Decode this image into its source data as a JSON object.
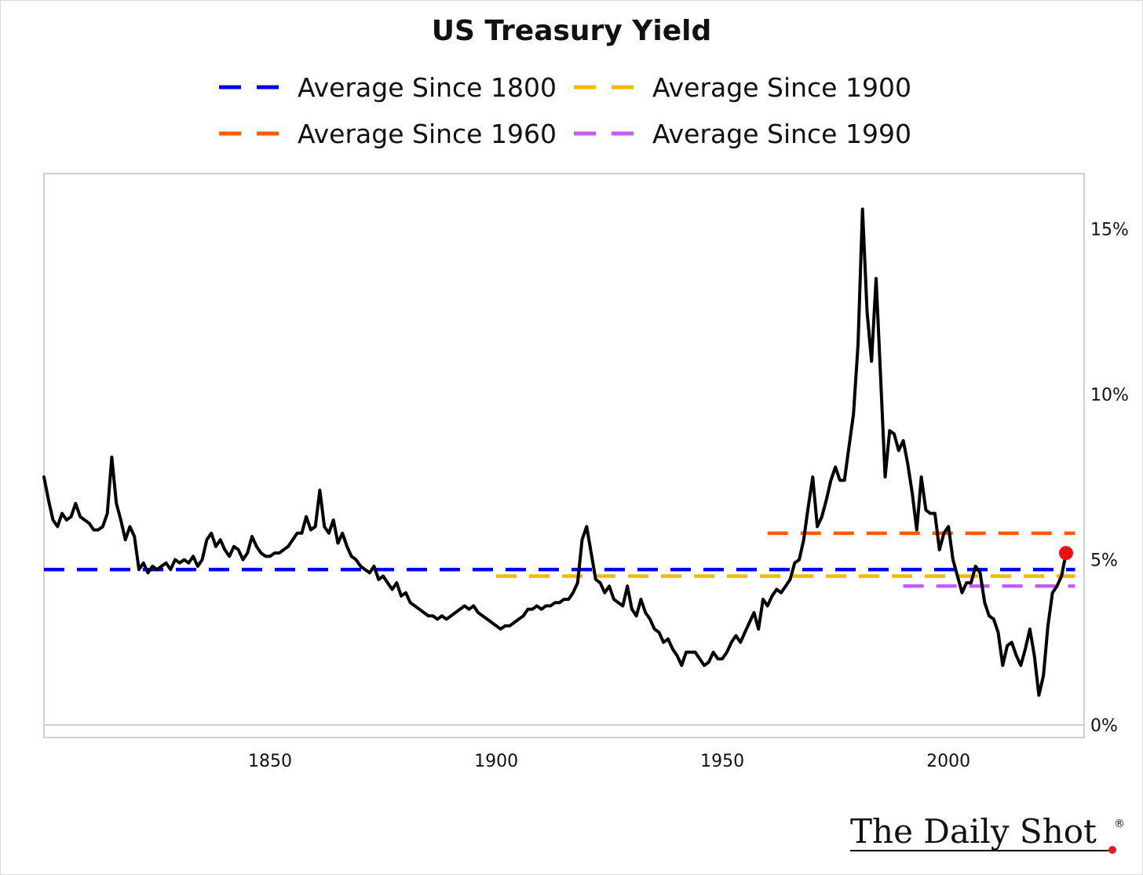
{
  "chart_data": {
    "type": "line",
    "title": "US Treasury Yield",
    "xlabel": "",
    "ylabel": "",
    "xlim": [
      1800,
      2030
    ],
    "ylim": [
      -0.2,
      16.6
    ],
    "x_ticks": [
      1850,
      1900,
      1950,
      2000
    ],
    "x_tick_labels": [
      "1850",
      "1900",
      "1950",
      "2000"
    ],
    "y_ticks": [
      0,
      5,
      10,
      15
    ],
    "y_tick_labels": [
      "0%",
      "5%",
      "10%",
      "15%"
    ],
    "y_axis_position": "right",
    "grid": false,
    "legend_position": "top",
    "series": [
      {
        "color": "#000000",
        "points": [
          [
            1800,
            7.5
          ],
          [
            1801,
            6.8
          ],
          [
            1802,
            6.2
          ],
          [
            1803,
            6.0
          ],
          [
            1804,
            6.4
          ],
          [
            1805,
            6.2
          ],
          [
            1806,
            6.3
          ],
          [
            1807,
            6.7
          ],
          [
            1808,
            6.3
          ],
          [
            1809,
            6.2
          ],
          [
            1810,
            6.1
          ],
          [
            1811,
            5.9
          ],
          [
            1812,
            5.9
          ],
          [
            1813,
            6.0
          ],
          [
            1814,
            6.4
          ],
          [
            1815,
            8.1
          ],
          [
            1816,
            6.7
          ],
          [
            1817,
            6.2
          ],
          [
            1818,
            5.6
          ],
          [
            1819,
            6.0
          ],
          [
            1820,
            5.7
          ],
          [
            1821,
            4.7
          ],
          [
            1822,
            4.9
          ],
          [
            1823,
            4.6
          ],
          [
            1824,
            4.8
          ],
          [
            1825,
            4.7
          ],
          [
            1826,
            4.8
          ],
          [
            1827,
            4.9
          ],
          [
            1828,
            4.7
          ],
          [
            1829,
            5.0
          ],
          [
            1830,
            4.9
          ],
          [
            1831,
            5.0
          ],
          [
            1832,
            4.9
          ],
          [
            1833,
            5.1
          ],
          [
            1834,
            4.8
          ],
          [
            1835,
            5.0
          ],
          [
            1836,
            5.6
          ],
          [
            1837,
            5.8
          ],
          [
            1838,
            5.4
          ],
          [
            1839,
            5.6
          ],
          [
            1840,
            5.3
          ],
          [
            1841,
            5.1
          ],
          [
            1842,
            5.4
          ],
          [
            1843,
            5.3
          ],
          [
            1844,
            5.0
          ],
          [
            1845,
            5.2
          ],
          [
            1846,
            5.7
          ],
          [
            1847,
            5.4
          ],
          [
            1848,
            5.2
          ],
          [
            1849,
            5.1
          ],
          [
            1850,
            5.1
          ],
          [
            1851,
            5.2
          ],
          [
            1852,
            5.2
          ],
          [
            1853,
            5.3
          ],
          [
            1854,
            5.4
          ],
          [
            1855,
            5.6
          ],
          [
            1856,
            5.8
          ],
          [
            1857,
            5.8
          ],
          [
            1858,
            6.3
          ],
          [
            1859,
            5.9
          ],
          [
            1860,
            6.0
          ],
          [
            1861,
            7.1
          ],
          [
            1862,
            6.0
          ],
          [
            1863,
            5.8
          ],
          [
            1864,
            6.2
          ],
          [
            1865,
            5.5
          ],
          [
            1866,
            5.8
          ],
          [
            1867,
            5.4
          ],
          [
            1868,
            5.1
          ],
          [
            1869,
            5.0
          ],
          [
            1870,
            4.8
          ],
          [
            1871,
            4.7
          ],
          [
            1872,
            4.6
          ],
          [
            1873,
            4.8
          ],
          [
            1874,
            4.4
          ],
          [
            1875,
            4.5
          ],
          [
            1876,
            4.3
          ],
          [
            1877,
            4.1
          ],
          [
            1878,
            4.3
          ],
          [
            1879,
            3.9
          ],
          [
            1880,
            4.0
          ],
          [
            1881,
            3.7
          ],
          [
            1882,
            3.6
          ],
          [
            1883,
            3.5
          ],
          [
            1884,
            3.4
          ],
          [
            1885,
            3.3
          ],
          [
            1886,
            3.3
          ],
          [
            1887,
            3.2
          ],
          [
            1888,
            3.3
          ],
          [
            1889,
            3.2
          ],
          [
            1890,
            3.3
          ],
          [
            1891,
            3.4
          ],
          [
            1892,
            3.5
          ],
          [
            1893,
            3.6
          ],
          [
            1894,
            3.5
          ],
          [
            1895,
            3.6
          ],
          [
            1896,
            3.4
          ],
          [
            1897,
            3.3
          ],
          [
            1898,
            3.2
          ],
          [
            1899,
            3.1
          ],
          [
            1900,
            3.0
          ],
          [
            1901,
            2.9
          ],
          [
            1902,
            3.0
          ],
          [
            1903,
            3.0
          ],
          [
            1904,
            3.1
          ],
          [
            1905,
            3.2
          ],
          [
            1906,
            3.3
          ],
          [
            1907,
            3.5
          ],
          [
            1908,
            3.5
          ],
          [
            1909,
            3.6
          ],
          [
            1910,
            3.5
          ],
          [
            1911,
            3.6
          ],
          [
            1912,
            3.6
          ],
          [
            1913,
            3.7
          ],
          [
            1914,
            3.7
          ],
          [
            1915,
            3.8
          ],
          [
            1916,
            3.8
          ],
          [
            1917,
            4.0
          ],
          [
            1918,
            4.3
          ],
          [
            1919,
            5.6
          ],
          [
            1920,
            6.0
          ],
          [
            1921,
            5.2
          ],
          [
            1922,
            4.4
          ],
          [
            1923,
            4.3
          ],
          [
            1924,
            4.0
          ],
          [
            1925,
            4.2
          ],
          [
            1926,
            3.8
          ],
          [
            1927,
            3.7
          ],
          [
            1928,
            3.6
          ],
          [
            1929,
            4.2
          ],
          [
            1930,
            3.5
          ],
          [
            1931,
            3.3
          ],
          [
            1932,
            3.8
          ],
          [
            1933,
            3.4
          ],
          [
            1934,
            3.2
          ],
          [
            1935,
            2.9
          ],
          [
            1936,
            2.8
          ],
          [
            1937,
            2.5
          ],
          [
            1938,
            2.6
          ],
          [
            1939,
            2.3
          ],
          [
            1940,
            2.1
          ],
          [
            1941,
            1.8
          ],
          [
            1942,
            2.2
          ],
          [
            1943,
            2.2
          ],
          [
            1944,
            2.2
          ],
          [
            1945,
            2.0
          ],
          [
            1946,
            1.8
          ],
          [
            1947,
            1.9
          ],
          [
            1948,
            2.2
          ],
          [
            1949,
            2.0
          ],
          [
            1950,
            2.0
          ],
          [
            1951,
            2.2
          ],
          [
            1952,
            2.5
          ],
          [
            1953,
            2.7
          ],
          [
            1954,
            2.5
          ],
          [
            1955,
            2.8
          ],
          [
            1956,
            3.1
          ],
          [
            1957,
            3.4
          ],
          [
            1958,
            2.9
          ],
          [
            1959,
            3.8
          ],
          [
            1960,
            3.6
          ],
          [
            1961,
            3.9
          ],
          [
            1962,
            4.1
          ],
          [
            1963,
            4.0
          ],
          [
            1964,
            4.2
          ],
          [
            1965,
            4.4
          ],
          [
            1966,
            4.9
          ],
          [
            1967,
            5.0
          ],
          [
            1968,
            5.6
          ],
          [
            1969,
            6.6
          ],
          [
            1970,
            7.5
          ],
          [
            1971,
            6.0
          ],
          [
            1972,
            6.3
          ],
          [
            1973,
            6.8
          ],
          [
            1974,
            7.4
          ],
          [
            1975,
            7.8
          ],
          [
            1976,
            7.4
          ],
          [
            1977,
            7.4
          ],
          [
            1978,
            8.4
          ],
          [
            1979,
            9.4
          ],
          [
            1980,
            11.5
          ],
          [
            1981,
            15.6
          ],
          [
            1982,
            12.5
          ],
          [
            1983,
            11.0
          ],
          [
            1984,
            13.5
          ],
          [
            1985,
            10.5
          ],
          [
            1986,
            7.5
          ],
          [
            1987,
            8.9
          ],
          [
            1988,
            8.8
          ],
          [
            1989,
            8.3
          ],
          [
            1990,
            8.6
          ],
          [
            1991,
            7.9
          ],
          [
            1992,
            7.0
          ],
          [
            1993,
            5.9
          ],
          [
            1994,
            7.5
          ],
          [
            1995,
            6.5
          ],
          [
            1996,
            6.4
          ],
          [
            1997,
            6.4
          ],
          [
            1998,
            5.3
          ],
          [
            1999,
            5.8
          ],
          [
            2000,
            6.0
          ],
          [
            2001,
            5.0
          ],
          [
            2002,
            4.5
          ],
          [
            2003,
            4.0
          ],
          [
            2004,
            4.3
          ],
          [
            2005,
            4.3
          ],
          [
            2006,
            4.8
          ],
          [
            2007,
            4.6
          ],
          [
            2008,
            3.7
          ],
          [
            2009,
            3.3
          ],
          [
            2010,
            3.2
          ],
          [
            2011,
            2.8
          ],
          [
            2012,
            1.8
          ],
          [
            2013,
            2.4
          ],
          [
            2014,
            2.5
          ],
          [
            2015,
            2.1
          ],
          [
            2016,
            1.8
          ],
          [
            2017,
            2.3
          ],
          [
            2018,
            2.9
          ],
          [
            2019,
            2.1
          ],
          [
            2020,
            0.9
          ],
          [
            2021,
            1.5
          ],
          [
            2022,
            3.0
          ],
          [
            2023,
            4.0
          ],
          [
            2024,
            4.2
          ],
          [
            2025,
            4.5
          ],
          [
            2026,
            5.2
          ]
        ]
      }
    ],
    "reference_lines": [
      {
        "name": "Average Since 1800",
        "color": "#0000ee",
        "value": 4.7,
        "x_start": 1800,
        "x_end": 2028
      },
      {
        "name": "Average Since 1900",
        "color": "#f5b800",
        "value": 4.5,
        "x_start": 1900,
        "x_end": 2028
      },
      {
        "name": "Average Since 1960",
        "color": "#ff5a00",
        "value": 5.8,
        "x_start": 1960,
        "x_end": 2028
      },
      {
        "name": "Average Since 1990",
        "color": "#c55cf5",
        "value": 4.2,
        "x_start": 1990,
        "x_end": 2028
      }
    ],
    "last_point": {
      "x": 2026,
      "y": 5.2,
      "color": "#ee1111"
    }
  },
  "branding": {
    "text": "The Daily Shot",
    "mark": "®",
    "dot_color": "#e31b23"
  }
}
